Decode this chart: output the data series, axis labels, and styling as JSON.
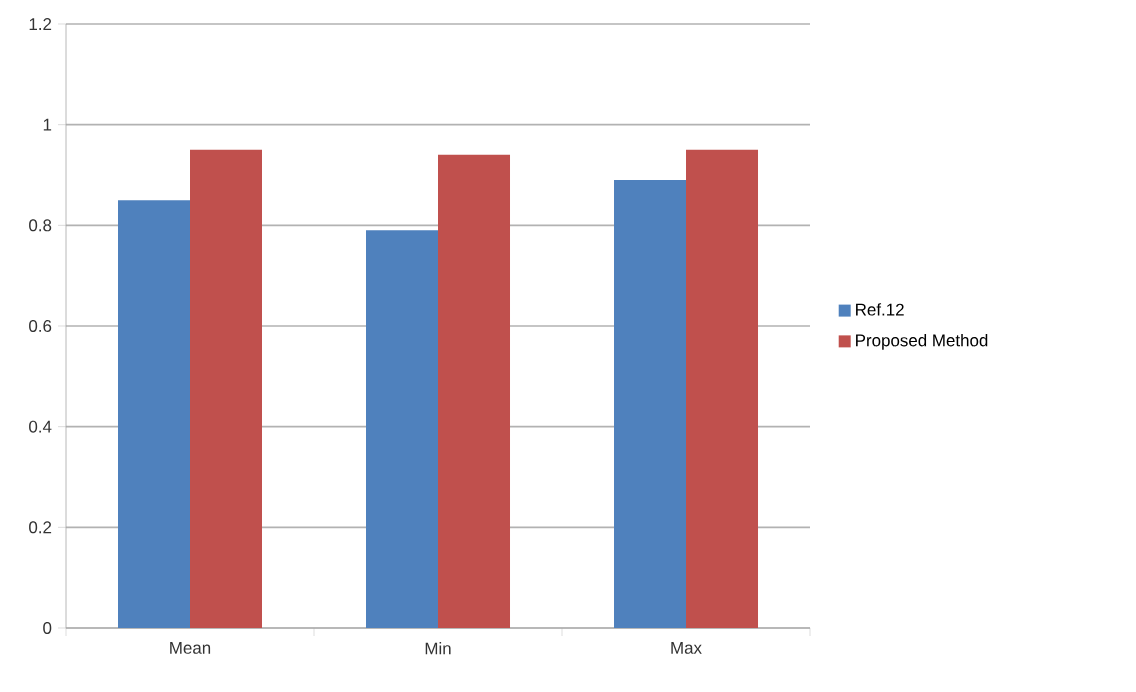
{
  "chart_data": {
    "type": "bar",
    "categories": [
      "Mean",
      "Min",
      "Max"
    ],
    "series": [
      {
        "name": "Ref.12",
        "color": "#4f81bd",
        "values": [
          0.85,
          0.79,
          0.89
        ]
      },
      {
        "name": "Proposed Method",
        "color": "#c0504d",
        "values": [
          0.95,
          0.94,
          0.95
        ]
      }
    ],
    "ylim": [
      0,
      1.2
    ],
    "yticks": [
      0,
      0.2,
      0.4,
      0.6,
      0.8,
      1,
      1.2
    ],
    "grid": "y",
    "legend": "right"
  }
}
